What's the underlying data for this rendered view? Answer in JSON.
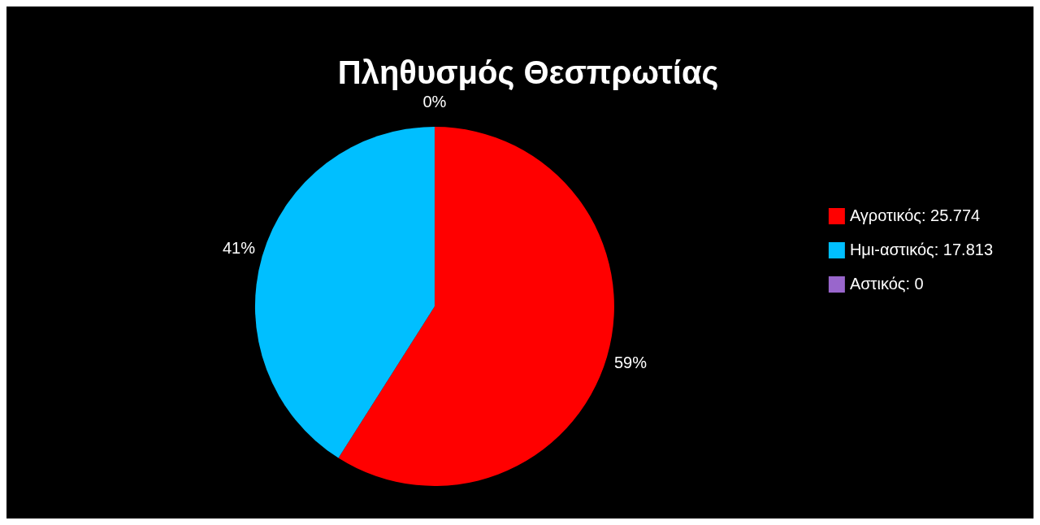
{
  "chart_data": {
    "type": "pie",
    "title": "Πληθυσμός Θεσπρωτίας",
    "categories": [
      "Αγροτικός: 25.774",
      "Ημι-αστικός: 17.813",
      "Αστικός: 0"
    ],
    "values": [
      59,
      41,
      0
    ],
    "value_labels": [
      "59%",
      "41%",
      "0%"
    ],
    "colors": [
      "#ff0000",
      "#00bfff",
      "#9966cc"
    ],
    "legend": "right"
  }
}
